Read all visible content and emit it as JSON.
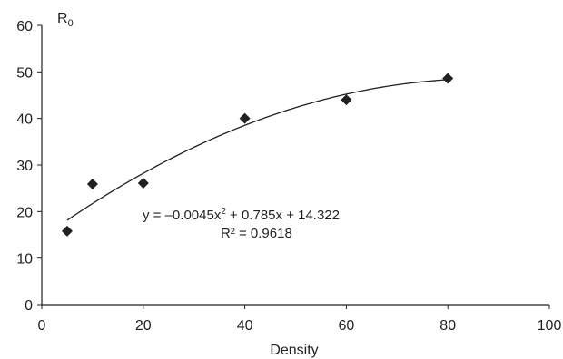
{
  "chart_data": {
    "type": "scatter",
    "xlabel": "Density",
    "ylabel_main": "R",
    "ylabel_sub": "0",
    "xlim": [
      0,
      100
    ],
    "ylim": [
      0,
      60
    ],
    "x_ticks": [
      0,
      20,
      40,
      60,
      80,
      100
    ],
    "y_ticks": [
      0,
      10,
      20,
      30,
      40,
      50,
      60
    ],
    "x_tick_labels": [
      "0",
      "20",
      "40",
      "60",
      "80",
      "100"
    ],
    "y_tick_labels": [
      "0",
      "10",
      "20",
      "30",
      "40",
      "50",
      "60"
    ],
    "grid": false,
    "series": [
      {
        "marker": "diamond",
        "color": "#231f20",
        "x": [
          5,
          10,
          20,
          40,
          60,
          80
        ],
        "y": [
          15.8,
          25.9,
          26.1,
          40.0,
          44.0,
          48.6
        ]
      }
    ],
    "trendline": {
      "type": "polynomial",
      "order": 2,
      "coefficients": [
        -0.0045,
        0.785,
        14.322
      ],
      "x_range": [
        5,
        80
      ],
      "equation_prefix": "y = –0.0045x",
      "equation_sup": "2",
      "equation_suffix": " + 0.785x  + 14.322",
      "r_squared_text": "R² = 0.9618"
    }
  }
}
